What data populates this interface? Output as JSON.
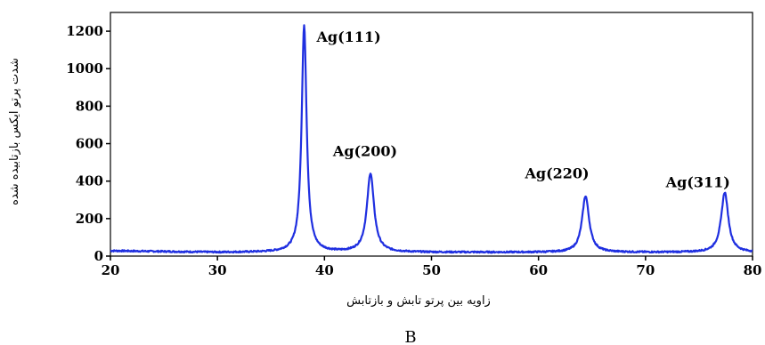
{
  "chart_data": {
    "type": "line",
    "title": "",
    "xlabel": "زاویه بین پرتو تابش و بازتابش",
    "ylabel": "شدت پرتو ایکس بازتابیده شده",
    "panel_label": "B",
    "xlim": [
      20,
      80
    ],
    "ylim": [
      0,
      1300
    ],
    "xticks": [
      20,
      30,
      40,
      50,
      60,
      70,
      80
    ],
    "yticks": [
      0,
      200,
      400,
      600,
      800,
      1000,
      1200
    ],
    "grid": false,
    "line_color": "#1f2fe0",
    "baseline": 20,
    "peaks": [
      {
        "label": "Ag(111)",
        "x": 38.1,
        "y": 1230
      },
      {
        "label": "Ag(200)",
        "x": 44.3,
        "y": 440
      },
      {
        "label": "Ag(220)",
        "x": 64.4,
        "y": 320
      },
      {
        "label": "Ag(311)",
        "x": 77.4,
        "y": 340
      }
    ]
  }
}
